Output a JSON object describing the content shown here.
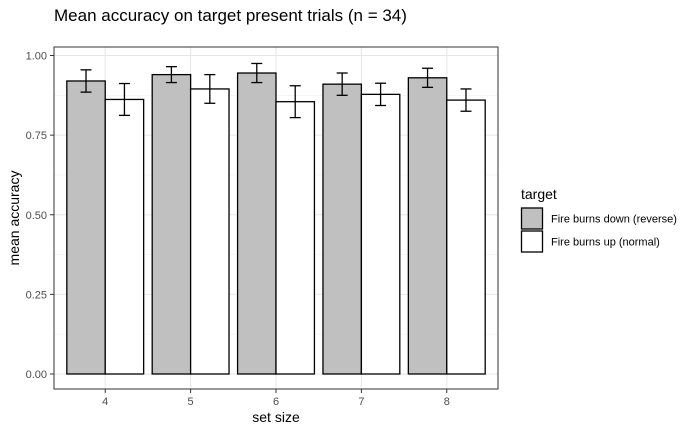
{
  "chart_data": {
    "type": "bar",
    "title": "Mean accuracy on target present trials (n = 34)",
    "xlabel": "set size",
    "ylabel": "mean accuracy",
    "categories": [
      "4",
      "5",
      "6",
      "7",
      "8"
    ],
    "ylim": [
      0,
      1
    ],
    "yticks": [
      "0.00",
      "0.25",
      "0.50",
      "0.75",
      "1.00"
    ],
    "grid": true,
    "legend_position": "right",
    "legend_title": "target",
    "series": [
      {
        "name": "Fire burns down (reverse)",
        "color": "#c0c0c0",
        "values": [
          0.92,
          0.94,
          0.945,
          0.91,
          0.93
        ],
        "error": [
          0.035,
          0.025,
          0.03,
          0.035,
          0.03
        ]
      },
      {
        "name": "Fire burns up (normal)",
        "color": "#ffffff",
        "values": [
          0.862,
          0.895,
          0.855,
          0.878,
          0.86
        ],
        "error": [
          0.05,
          0.045,
          0.05,
          0.035,
          0.035
        ]
      }
    ]
  }
}
